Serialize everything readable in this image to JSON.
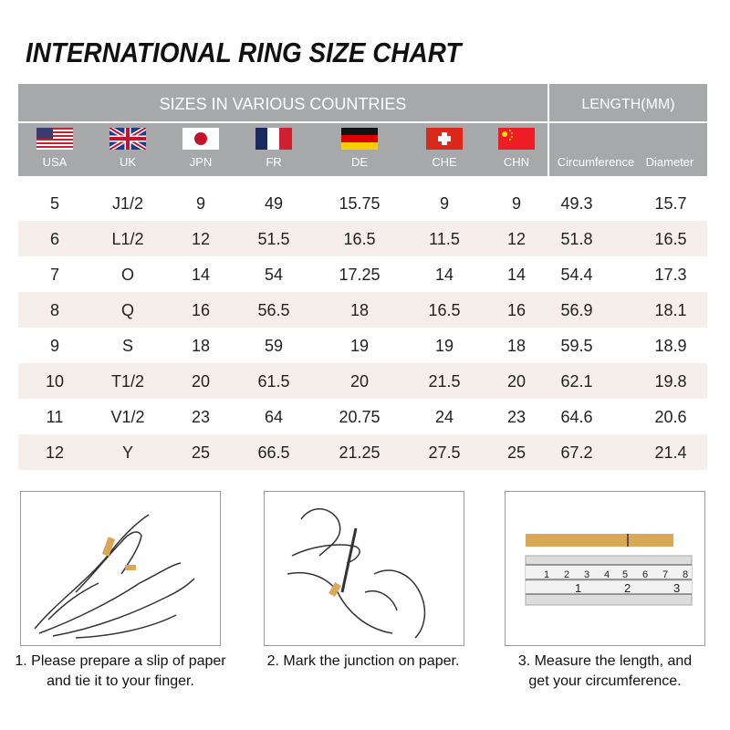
{
  "title": "INTERNATIONAL RING SIZE CHART",
  "header": {
    "sizes_title": "SIZES IN VARIOUS COUNTRIES",
    "length_title": "LENGTH(MM)",
    "columns": [
      "USA",
      "UK",
      "JPN",
      "FR",
      "DE",
      "CHE",
      "CHN",
      "Circumference",
      "Diameter"
    ]
  },
  "rows": [
    [
      "5",
      "J1/2",
      "9",
      "49",
      "15.75",
      "9",
      "9",
      "49.3",
      "15.7"
    ],
    [
      "6",
      "L1/2",
      "12",
      "51.5",
      "16.5",
      "11.5",
      "12",
      "51.8",
      "16.5"
    ],
    [
      "7",
      "O",
      "14",
      "54",
      "17.25",
      "14",
      "14",
      "54.4",
      "17.3"
    ],
    [
      "8",
      "Q",
      "16",
      "56.5",
      "18",
      "16.5",
      "16",
      "56.9",
      "18.1"
    ],
    [
      "9",
      "S",
      "18",
      "59",
      "19",
      "19",
      "18",
      "59.5",
      "18.9"
    ],
    [
      "10",
      "T1/2",
      "20",
      "61.5",
      "20",
      "21.5",
      "20",
      "62.1",
      "19.8"
    ],
    [
      "11",
      "V1/2",
      "23",
      "64",
      "20.75",
      "24",
      "23",
      "64.6",
      "20.6"
    ],
    [
      "12",
      "Y",
      "25",
      "66.5",
      "21.25",
      "27.5",
      "25",
      "67.2",
      "21.4"
    ]
  ],
  "steps": [
    {
      "line1": "1. Please prepare a slip of paper",
      "line2": "and tie it to your finger."
    },
    {
      "line1": "2. Mark the junction on paper.",
      "line2": ""
    },
    {
      "line1": "3. Measure the length, and",
      "line2": "get your circumference."
    }
  ],
  "colors": {
    "header_bg": "#a7a8aa",
    "stripe": "#f6eeea",
    "paper": "#d9a857"
  }
}
